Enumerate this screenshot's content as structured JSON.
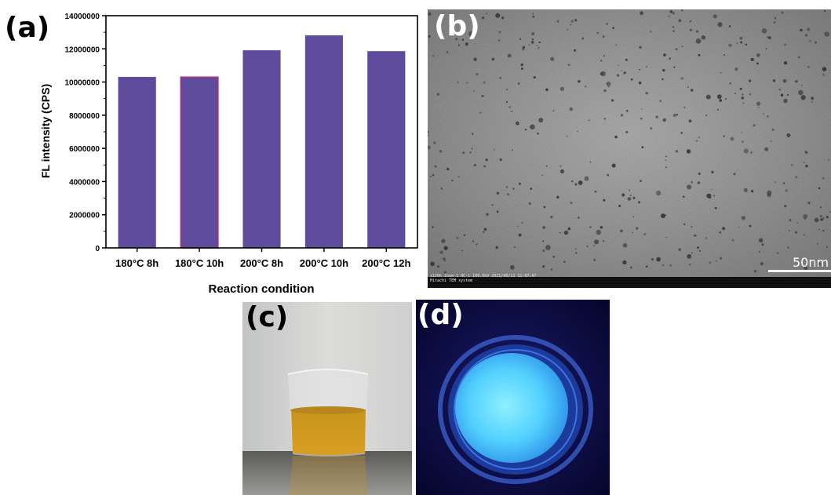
{
  "panels": {
    "a": "(a)",
    "b": "(b)",
    "c": "(c)",
    "d": "(d)"
  },
  "chart_data": {
    "type": "bar",
    "categories": [
      "180°C 8h",
      "180°C 10h",
      "200°C 8h",
      "200°C 10h",
      "200°C 12h"
    ],
    "values": [
      10300000,
      10300000,
      11900000,
      12800000,
      11850000
    ],
    "xlabel": "Reaction condition",
    "ylabel": "FL intensity (CPS)",
    "ylim": [
      0,
      14000000
    ],
    "yticks": [
      "0",
      "2000000",
      "4000000",
      "6000000",
      "8000000",
      "10000000",
      "12000000",
      "14000000"
    ],
    "bar_color": "#5f4b9c",
    "highlight_edge_color": "#c0307a"
  },
  "tem": {
    "scale_bar_label": "50nm",
    "caption_line1": "x120k Zoom-1 HC-1 100.0kV 2021/06/11 11:07:47",
    "caption_line2": "Hitachi TEM system"
  }
}
